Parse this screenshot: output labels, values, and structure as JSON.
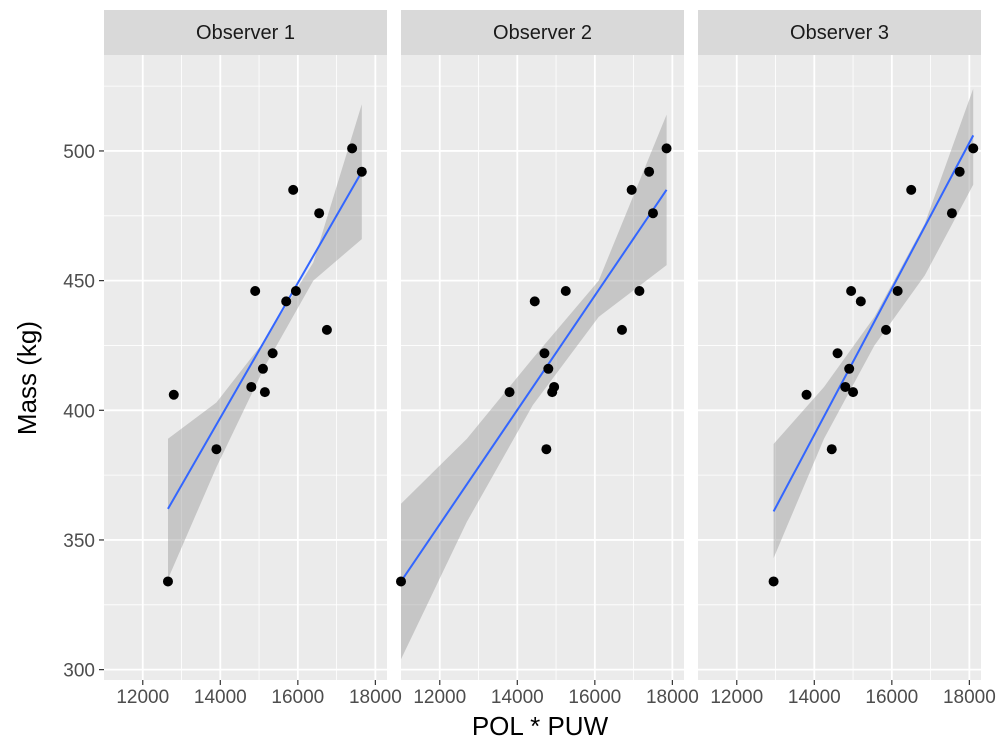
{
  "chart_data": {
    "type": "scatter",
    "xlabel": "POL * PUW",
    "ylabel": "Mass (kg)",
    "xlim": [
      11000,
      18300
    ],
    "ylim": [
      296,
      537
    ],
    "x_ticks": [
      12000,
      14000,
      16000,
      18000
    ],
    "y_ticks": [
      300,
      350,
      400,
      450,
      500
    ],
    "grid": true,
    "smooth": "linear fit with confidence band",
    "colors": {
      "panel_bg": "#ebebeb",
      "strip_bg": "#d9d9d9",
      "grid": "#ffffff",
      "point": "#000000",
      "fit_line": "#3366ff",
      "band": "#999999"
    },
    "facets": [
      {
        "label": "Observer 1",
        "points": [
          {
            "x": 12650,
            "y": 334
          },
          {
            "x": 12800,
            "y": 406
          },
          {
            "x": 13900,
            "y": 385
          },
          {
            "x": 14800,
            "y": 409
          },
          {
            "x": 14900,
            "y": 446
          },
          {
            "x": 15100,
            "y": 416
          },
          {
            "x": 15150,
            "y": 407
          },
          {
            "x": 15350,
            "y": 422
          },
          {
            "x": 15700,
            "y": 442
          },
          {
            "x": 15880,
            "y": 485
          },
          {
            "x": 15950,
            "y": 446
          },
          {
            "x": 16550,
            "y": 476
          },
          {
            "x": 16750,
            "y": 431
          },
          {
            "x": 17400,
            "y": 501
          },
          {
            "x": 17650,
            "y": 492
          }
        ],
        "fit": {
          "x": [
            12650,
            17650
          ],
          "y": [
            362,
            492
          ]
        },
        "band": {
          "x": [
            12650,
            13900,
            15150,
            16400,
            17650
          ],
          "lower": [
            335,
            378,
            417,
            450,
            466
          ],
          "upper": [
            389,
            403,
            427,
            457,
            518
          ]
        }
      },
      {
        "label": "Observer 2",
        "points": [
          {
            "x": 11000,
            "y": 334
          },
          {
            "x": 13800,
            "y": 407
          },
          {
            "x": 14450,
            "y": 442
          },
          {
            "x": 14700,
            "y": 422
          },
          {
            "x": 14750,
            "y": 385
          },
          {
            "x": 14800,
            "y": 416
          },
          {
            "x": 14900,
            "y": 407
          },
          {
            "x": 14950,
            "y": 409
          },
          {
            "x": 15250,
            "y": 446
          },
          {
            "x": 16700,
            "y": 431
          },
          {
            "x": 16950,
            "y": 485
          },
          {
            "x": 17150,
            "y": 446
          },
          {
            "x": 17400,
            "y": 492
          },
          {
            "x": 17500,
            "y": 476
          },
          {
            "x": 17850,
            "y": 501
          }
        ],
        "fit": {
          "x": [
            11000,
            17850
          ],
          "y": [
            334,
            485
          ]
        },
        "band": {
          "x": [
            11000,
            12700,
            14400,
            16100,
            17850
          ],
          "lower": [
            304,
            357,
            402,
            436,
            456
          ],
          "upper": [
            364,
            389,
            420,
            450,
            514
          ]
        }
      },
      {
        "label": "Observer 3",
        "points": [
          {
            "x": 12950,
            "y": 334
          },
          {
            "x": 13800,
            "y": 406
          },
          {
            "x": 14450,
            "y": 385
          },
          {
            "x": 14600,
            "y": 422
          },
          {
            "x": 14800,
            "y": 409
          },
          {
            "x": 14900,
            "y": 416
          },
          {
            "x": 14950,
            "y": 446
          },
          {
            "x": 15000,
            "y": 407
          },
          {
            "x": 15200,
            "y": 442
          },
          {
            "x": 15850,
            "y": 431
          },
          {
            "x": 16150,
            "y": 446
          },
          {
            "x": 16500,
            "y": 485
          },
          {
            "x": 17550,
            "y": 476
          },
          {
            "x": 17750,
            "y": 492
          },
          {
            "x": 18100,
            "y": 501
          }
        ],
        "fit": {
          "x": [
            12950,
            18100
          ],
          "y": [
            361,
            506
          ]
        },
        "band": {
          "x": [
            12950,
            14250,
            15550,
            16850,
            18100
          ],
          "lower": [
            343,
            389,
            425,
            452,
            487
          ],
          "upper": [
            387,
            409,
            436,
            472,
            524
          ]
        }
      }
    ]
  }
}
